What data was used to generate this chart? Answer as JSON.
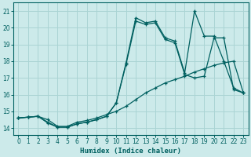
{
  "xlabel": "Humidex (Indice chaleur)",
  "background_color": "#cceaea",
  "grid_color": "#aad4d4",
  "line_color": "#006060",
  "xlim": [
    -0.5,
    23.5
  ],
  "ylim": [
    13.6,
    21.5
  ],
  "xticks": [
    0,
    1,
    2,
    3,
    4,
    5,
    6,
    7,
    8,
    9,
    10,
    11,
    12,
    13,
    14,
    15,
    16,
    17,
    18,
    19,
    20,
    21,
    22,
    23
  ],
  "yticks": [
    14,
    15,
    16,
    17,
    18,
    19,
    20,
    21
  ],
  "line1_x": [
    0,
    1,
    2,
    3,
    4,
    5,
    6,
    7,
    8,
    9,
    10,
    11,
    12,
    13,
    14,
    15,
    16,
    17,
    18,
    19,
    20,
    21,
    22,
    23
  ],
  "line1_y": [
    14.6,
    14.65,
    14.7,
    14.5,
    14.1,
    14.1,
    14.35,
    14.45,
    14.6,
    14.8,
    15.0,
    15.3,
    15.7,
    16.1,
    16.4,
    16.7,
    16.9,
    17.1,
    17.35,
    17.55,
    17.75,
    17.9,
    18.0,
    16.1
  ],
  "line2_x": [
    0,
    1,
    2,
    3,
    4,
    5,
    6,
    7,
    8,
    9,
    10,
    11,
    12,
    13,
    14,
    15,
    16,
    17,
    18,
    19,
    20,
    21,
    22,
    23
  ],
  "line2_y": [
    14.6,
    14.65,
    14.7,
    14.3,
    14.05,
    14.05,
    14.25,
    14.35,
    14.5,
    14.7,
    15.5,
    17.8,
    20.4,
    20.2,
    20.3,
    19.3,
    19.1,
    17.2,
    17.0,
    17.1,
    19.4,
    19.4,
    16.3,
    16.1
  ],
  "line3_x": [
    0,
    1,
    2,
    3,
    4,
    5,
    6,
    7,
    8,
    9,
    10,
    11,
    12,
    13,
    14,
    15,
    16,
    17,
    18,
    19,
    20,
    21,
    22,
    23
  ],
  "line3_y": [
    14.6,
    14.65,
    14.7,
    14.35,
    14.05,
    14.05,
    14.25,
    14.35,
    14.5,
    14.7,
    15.5,
    17.9,
    20.6,
    20.3,
    20.4,
    19.4,
    19.2,
    17.3,
    21.0,
    19.5,
    19.5,
    18.0,
    16.4,
    16.1
  ]
}
